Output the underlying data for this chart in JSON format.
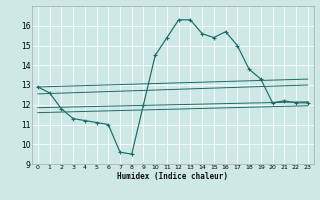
{
  "title": "",
  "xlabel": "Humidex (Indice chaleur)",
  "background_color": "#cee9e5",
  "grid_color": "#ffffff",
  "line_color": "#1a6b6b",
  "xlim": [
    -0.5,
    23.5
  ],
  "ylim": [
    9,
    17
  ],
  "xticks": [
    0,
    1,
    2,
    3,
    4,
    5,
    6,
    7,
    8,
    9,
    10,
    11,
    12,
    13,
    14,
    15,
    16,
    17,
    18,
    19,
    20,
    21,
    22,
    23
  ],
  "yticks": [
    9,
    10,
    11,
    12,
    13,
    14,
    15,
    16
  ],
  "main_line": {
    "x": [
      0,
      1,
      2,
      3,
      4,
      5,
      6,
      7,
      8,
      9,
      10,
      11,
      12,
      13,
      14,
      15,
      16,
      17,
      18,
      19,
      20,
      21,
      22,
      23
    ],
    "y": [
      12.9,
      12.6,
      11.8,
      11.3,
      11.2,
      11.1,
      11.0,
      9.6,
      9.5,
      12.0,
      14.5,
      15.4,
      16.3,
      16.3,
      15.6,
      15.4,
      15.7,
      15.0,
      13.8,
      13.3,
      12.1,
      12.2,
      12.1,
      12.1
    ]
  },
  "ref_lines": [
    {
      "x0": 0,
      "y0": 12.9,
      "x1": 23,
      "y1": 13.3
    },
    {
      "x0": 0,
      "y0": 12.55,
      "x1": 23,
      "y1": 13.0
    },
    {
      "x0": 0,
      "y0": 11.85,
      "x1": 23,
      "y1": 12.15
    },
    {
      "x0": 0,
      "y0": 11.6,
      "x1": 23,
      "y1": 11.95
    }
  ]
}
